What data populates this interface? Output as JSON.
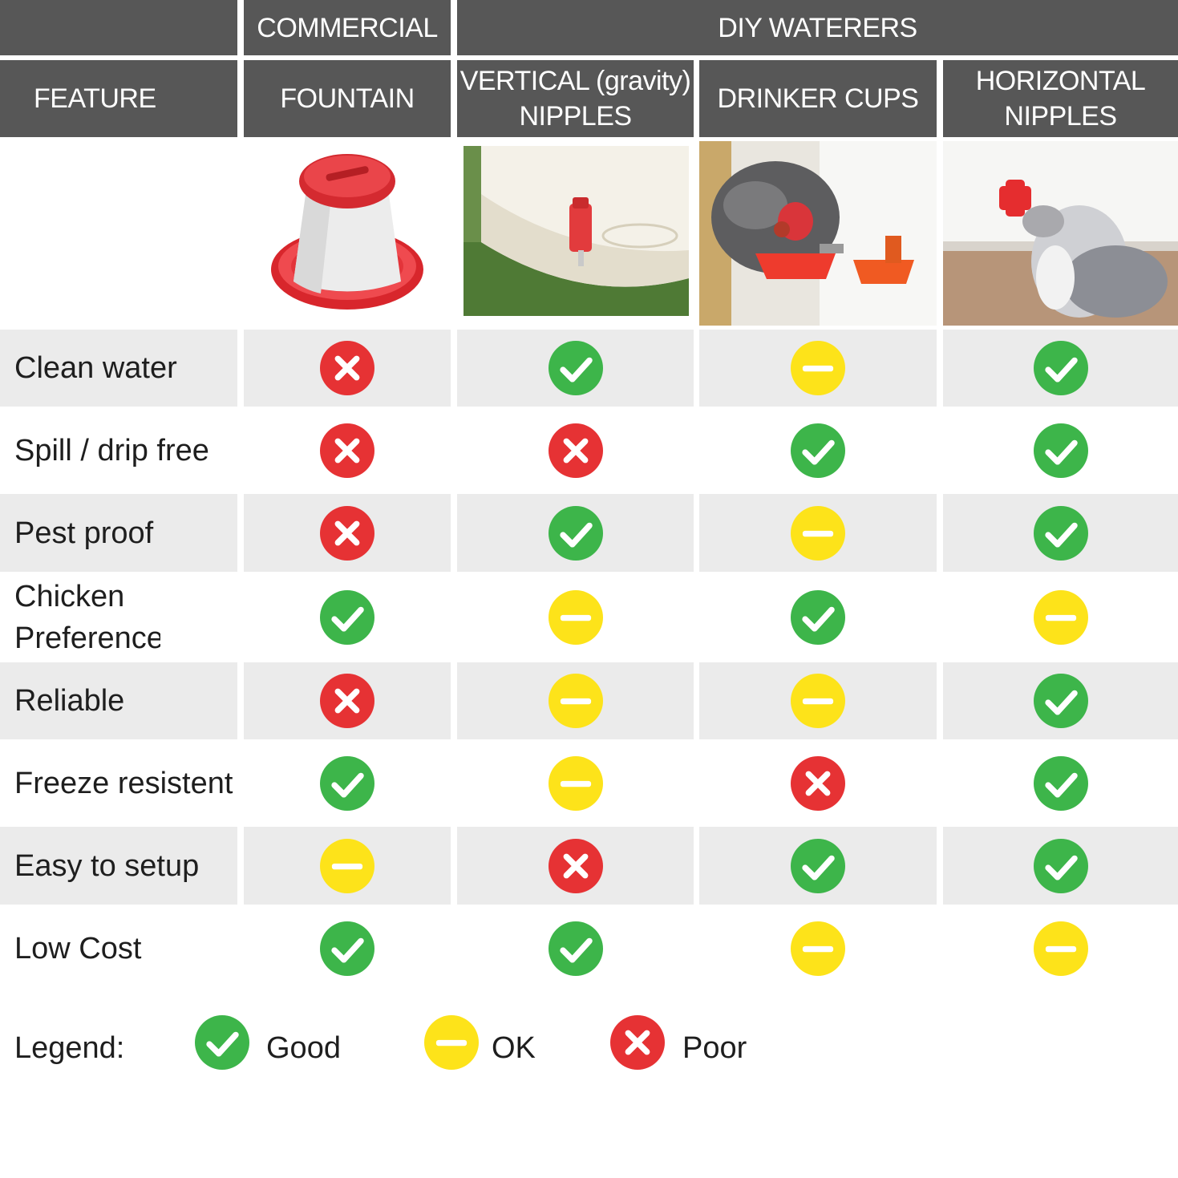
{
  "header": {
    "group_commercial": "COMMERCIAL",
    "group_diy": "DIY WATERERS",
    "feature_label": "FEATURE",
    "columns": [
      {
        "line1": "FOUNTAIN",
        "line2": ""
      },
      {
        "line1": "VERTICAL (gravity)",
        "line2": "NIPPLES"
      },
      {
        "line1": "DRINKER CUPS",
        "line2": ""
      },
      {
        "line1": "HORIZONTAL",
        "line2": "NIPPLES"
      }
    ]
  },
  "rows": [
    {
      "feature": "Clean water",
      "ratings": [
        "poor",
        "good",
        "ok",
        "good"
      ]
    },
    {
      "feature": "Spill / drip free",
      "ratings": [
        "poor",
        "poor",
        "good",
        "good"
      ]
    },
    {
      "feature": "Pest proof",
      "ratings": [
        "poor",
        "good",
        "ok",
        "good"
      ]
    },
    {
      "feature": "Chicken Preference",
      "ratings": [
        "good",
        "ok",
        "good",
        "ok"
      ]
    },
    {
      "feature": "Reliable",
      "ratings": [
        "poor",
        "ok",
        "ok",
        "good"
      ]
    },
    {
      "feature": "Freeze resistent",
      "ratings": [
        "good",
        "ok",
        "poor",
        "good"
      ]
    },
    {
      "feature": "Easy to setup",
      "ratings": [
        "ok",
        "poor",
        "good",
        "good"
      ]
    },
    {
      "feature": "Low Cost",
      "ratings": [
        "good",
        "good",
        "ok",
        "ok"
      ]
    }
  ],
  "legend": {
    "title": "Legend:",
    "good": "Good",
    "ok": "OK",
    "poor": "Poor"
  },
  "colors": {
    "header_bg": "#575757",
    "good": "#3db54a",
    "ok": "#fde31a",
    "poor": "#e63234",
    "shade": "#ebebeb"
  },
  "icons": {
    "good": "check-circle-icon",
    "ok": "dash-circle-icon",
    "poor": "x-circle-icon"
  }
}
